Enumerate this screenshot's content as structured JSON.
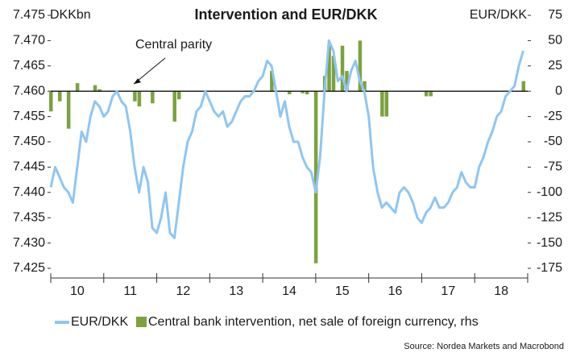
{
  "chart_data": {
    "type": "bar_line",
    "title": "Intervention and EUR/DKK",
    "y_label": "DKKbn",
    "y2_label": "EUR/DKK",
    "source": "Source: Nordea Markets and Macrobond",
    "annotations": [
      {
        "text": "Central parity",
        "value": 7.46
      }
    ],
    "xlim": [
      10,
      19
    ],
    "xticks": [
      {
        "value": 10.5,
        "label": "10"
      },
      {
        "value": 11.5,
        "label": "11"
      },
      {
        "value": 12.5,
        "label": "12"
      },
      {
        "value": 13.5,
        "label": "13"
      },
      {
        "value": 14.5,
        "label": "14"
      },
      {
        "value": 15.5,
        "label": "15"
      },
      {
        "value": 16.5,
        "label": "16"
      },
      {
        "value": 17.5,
        "label": "17"
      },
      {
        "value": 18.5,
        "label": "18"
      }
    ],
    "ylim": [
      7.425,
      7.475
    ],
    "yticks": [
      7.425,
      {
        "value": 7.43,
        "label": "7.430"
      },
      7.435,
      {
        "value": 7.44,
        "label": "7.440"
      },
      7.445,
      {
        "value": 7.45,
        "label": "7.450"
      },
      7.455,
      {
        "value": 7.46,
        "label": "7.460"
      },
      7.465,
      {
        "value": 7.47,
        "label": "7.470"
      },
      7.475
    ],
    "y2lim": [
      -175,
      75
    ],
    "y2ticks": [
      -175,
      -150,
      -125,
      -100,
      -75,
      -50,
      -25,
      0,
      25,
      50,
      75
    ],
    "x": [
      10,
      10.083,
      10.167,
      10.25,
      10.333,
      10.417,
      10.5,
      10.583,
      10.667,
      10.75,
      10.833,
      10.917,
      11,
      11.083,
      11.167,
      11.25,
      11.333,
      11.417,
      11.5,
      11.583,
      11.667,
      11.75,
      11.833,
      11.917,
      12,
      12.083,
      12.167,
      12.25,
      12.333,
      12.417,
      12.5,
      12.583,
      12.667,
      12.75,
      12.833,
      12.917,
      13,
      13.083,
      13.167,
      13.25,
      13.333,
      13.417,
      13.5,
      13.583,
      13.667,
      13.75,
      13.833,
      13.917,
      14,
      14.083,
      14.167,
      14.25,
      14.333,
      14.417,
      14.5,
      14.583,
      14.667,
      14.75,
      14.833,
      14.917,
      15,
      15.083,
      15.167,
      15.25,
      15.333,
      15.417,
      15.5,
      15.583,
      15.667,
      15.75,
      15.833,
      15.917,
      16,
      16.083,
      16.167,
      16.25,
      16.333,
      16.417,
      16.5,
      16.583,
      16.667,
      16.75,
      16.833,
      16.917,
      17,
      17.083,
      17.167,
      17.25,
      17.333,
      17.417,
      17.5,
      17.583,
      17.667,
      17.75,
      17.833,
      17.917,
      18,
      18.083,
      18.167,
      18.25,
      18.333,
      18.417,
      18.5,
      18.583,
      18.667,
      18.75,
      18.833,
      18.917
    ],
    "series": [
      {
        "name": "EUR/DKK",
        "kind": "line",
        "color": "#8fc6f2",
        "values": [
          7.441,
          7.445,
          7.443,
          7.441,
          7.44,
          7.438,
          7.445,
          7.452,
          7.45,
          7.455,
          7.458,
          7.457,
          7.455,
          7.456,
          7.459,
          7.46,
          7.458,
          7.457,
          7.452,
          7.445,
          7.44,
          7.445,
          7.442,
          7.433,
          7.432,
          7.435,
          7.44,
          7.432,
          7.431,
          7.438,
          7.445,
          7.45,
          7.452,
          7.456,
          7.457,
          7.46,
          7.458,
          7.456,
          7.455,
          7.456,
          7.453,
          7.454,
          7.456,
          7.458,
          7.459,
          7.459,
          7.46,
          7.462,
          7.463,
          7.466,
          7.465,
          7.46,
          7.455,
          7.458,
          7.453,
          7.45,
          7.45,
          7.447,
          7.445,
          7.444,
          7.44,
          7.447,
          7.46,
          7.47,
          7.468,
          7.462,
          7.463,
          7.46,
          7.464,
          7.466,
          7.462,
          7.46,
          7.455,
          7.445,
          7.44,
          7.437,
          7.438,
          7.437,
          7.436,
          7.44,
          7.441,
          7.44,
          7.438,
          7.435,
          7.434,
          7.436,
          7.437,
          7.439,
          7.437,
          7.437,
          7.438,
          7.44,
          7.441,
          7.444,
          7.442,
          7.441,
          7.441,
          7.445,
          7.447,
          7.45,
          7.452,
          7.455,
          7.456,
          7.459,
          7.46,
          7.461,
          7.465,
          7.468
        ]
      },
      {
        "name": "Central bank intervention, net sale of foreign currency, rhs",
        "kind": "bar",
        "axis": "y2",
        "color": "#7ba23f",
        "values": [
          -20,
          0,
          -10,
          0,
          -37,
          0,
          8,
          0,
          0,
          0,
          6,
          2,
          0,
          0,
          0,
          0,
          0,
          0,
          0,
          -10,
          -15,
          0,
          0,
          -12,
          0,
          0,
          0,
          0,
          -30,
          -8,
          0,
          0,
          0,
          0,
          0,
          0,
          0,
          0,
          0,
          0,
          0,
          0,
          0,
          0,
          0,
          0,
          0,
          0,
          0,
          0,
          20,
          0,
          0,
          0,
          -3,
          0,
          0,
          -2,
          -3,
          0,
          -170,
          0,
          15,
          45,
          35,
          0,
          45,
          20,
          0,
          0,
          50,
          10,
          0,
          0,
          0,
          -25,
          -25,
          0,
          0,
          0,
          0,
          0,
          0,
          0,
          0,
          -5,
          -5,
          0,
          0,
          0,
          0,
          0,
          0,
          0,
          0,
          0,
          0,
          0,
          0,
          0,
          0,
          0,
          0,
          0,
          0,
          0,
          0,
          10
        ]
      }
    ]
  }
}
